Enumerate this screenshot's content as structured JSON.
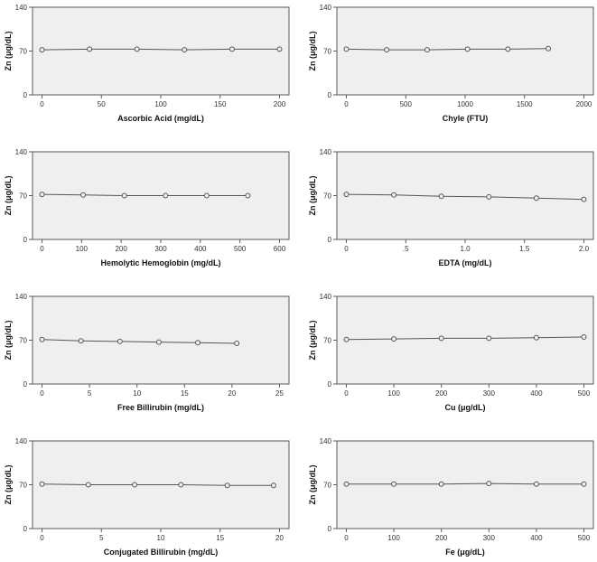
{
  "chart_data": [
    {
      "type": "line",
      "xlabel": "Ascorbic Acid (mg/dL)",
      "ylabel": "Zn (μg/dL)",
      "xlim": [
        -8,
        208
      ],
      "ylim": [
        0,
        140
      ],
      "xticks": [
        0,
        50,
        100,
        150,
        200
      ],
      "xtick_labels": [
        "0",
        "50",
        "100",
        "150",
        "200"
      ],
      "yticks": [
        0,
        70,
        140
      ],
      "ytick_labels": [
        "0",
        "70",
        "140"
      ],
      "x": [
        0,
        40,
        80,
        120,
        160,
        200
      ],
      "values": [
        72,
        73,
        73,
        72,
        73,
        73
      ]
    },
    {
      "type": "line",
      "xlabel": "Chyle (FTU)",
      "ylabel": "Zn (μg/dL)",
      "xlim": [
        -80,
        2080
      ],
      "ylim": [
        0,
        140
      ],
      "xticks": [
        0,
        500,
        1000,
        1500,
        2000
      ],
      "xtick_labels": [
        "0",
        "500",
        "1000",
        "1500",
        "2000"
      ],
      "yticks": [
        0,
        70,
        140
      ],
      "ytick_labels": [
        "0",
        "70",
        "140"
      ],
      "x": [
        0,
        340,
        680,
        1020,
        1360,
        1700
      ],
      "values": [
        73,
        72,
        72,
        73,
        73,
        74
      ]
    },
    {
      "type": "line",
      "xlabel": "Hemolytic Hemoglobin (mg/dL)",
      "ylabel": "Zn (μg/dL)",
      "xlim": [
        -24,
        624
      ],
      "ylim": [
        0,
        140
      ],
      "xticks": [
        0,
        100,
        200,
        300,
        400,
        500,
        600
      ],
      "xtick_labels": [
        "0",
        "100",
        "200",
        "300",
        "400",
        "500",
        "600"
      ],
      "yticks": [
        0,
        70,
        140
      ],
      "ytick_labels": [
        "0",
        "70",
        "140"
      ],
      "x": [
        0,
        104,
        208,
        312,
        416,
        520
      ],
      "values": [
        72,
        71,
        70,
        70,
        70,
        70
      ]
    },
    {
      "type": "line",
      "xlabel": "EDTA (mg/dL)",
      "ylabel": "Zn (μg/dL)",
      "xlim": [
        -0.08,
        2.08
      ],
      "ylim": [
        0,
        140
      ],
      "xticks": [
        0,
        0.5,
        1.0,
        1.5,
        2.0
      ],
      "xtick_labels": [
        "0",
        ".5",
        "1.0",
        "1.5",
        "2.0"
      ],
      "yticks": [
        0,
        70,
        140
      ],
      "ytick_labels": [
        "0",
        "70",
        "140"
      ],
      "x": [
        0,
        0.4,
        0.8,
        1.2,
        1.6,
        2.0
      ],
      "values": [
        72,
        71,
        69,
        68,
        66,
        64
      ]
    },
    {
      "type": "line",
      "xlabel": "Free Billirubin (mg/dL)",
      "ylabel": "Zn (μg/dL)",
      "xlim": [
        -1,
        26
      ],
      "ylim": [
        0,
        140
      ],
      "xticks": [
        0,
        5,
        10,
        15,
        20,
        25
      ],
      "xtick_labels": [
        "0",
        "5",
        "10",
        "15",
        "20",
        "25"
      ],
      "yticks": [
        0,
        70,
        140
      ],
      "ytick_labels": [
        "0",
        "70",
        "140"
      ],
      "x": [
        0,
        4.1,
        8.2,
        12.3,
        16.4,
        20.5
      ],
      "values": [
        71,
        69,
        68,
        67,
        66,
        65
      ]
    },
    {
      "type": "line",
      "xlabel": "Cu (μg/dL)",
      "ylabel": "Zn (μg/dL)",
      "xlim": [
        -20,
        520
      ],
      "ylim": [
        0,
        140
      ],
      "xticks": [
        0,
        100,
        200,
        300,
        400,
        500
      ],
      "xtick_labels": [
        "0",
        "100",
        "200",
        "300",
        "400",
        "500"
      ],
      "yticks": [
        0,
        70,
        140
      ],
      "ytick_labels": [
        "0",
        "70",
        "140"
      ],
      "x": [
        0,
        100,
        200,
        300,
        400,
        500
      ],
      "values": [
        71,
        72,
        73,
        73,
        74,
        75
      ]
    },
    {
      "type": "line",
      "xlabel": "Conjugated Billirubin (mg/dL)",
      "ylabel": "Zn (μg/dL)",
      "xlim": [
        -0.8,
        20.8
      ],
      "ylim": [
        0,
        140
      ],
      "xticks": [
        0,
        5,
        10,
        15,
        20
      ],
      "xtick_labels": [
        "0",
        "5",
        "10",
        "15",
        "20"
      ],
      "yticks": [
        0,
        70,
        140
      ],
      "ytick_labels": [
        "0",
        "70",
        "140"
      ],
      "x": [
        0,
        3.9,
        7.8,
        11.7,
        15.6,
        19.5
      ],
      "values": [
        71,
        70,
        70,
        70,
        69,
        69
      ]
    },
    {
      "type": "line",
      "xlabel": "Fe (μg/dL)",
      "ylabel": "Zn (μg/dL)",
      "xlim": [
        -20,
        520
      ],
      "ylim": [
        0,
        140
      ],
      "xticks": [
        0,
        100,
        200,
        300,
        400,
        500
      ],
      "xtick_labels": [
        "0",
        "100",
        "200",
        "300",
        "400",
        "500"
      ],
      "yticks": [
        0,
        70,
        140
      ],
      "ytick_labels": [
        "0",
        "70",
        "140"
      ],
      "x": [
        0,
        100,
        200,
        300,
        400,
        500
      ],
      "values": [
        71,
        71,
        71,
        72,
        71,
        71
      ]
    }
  ]
}
